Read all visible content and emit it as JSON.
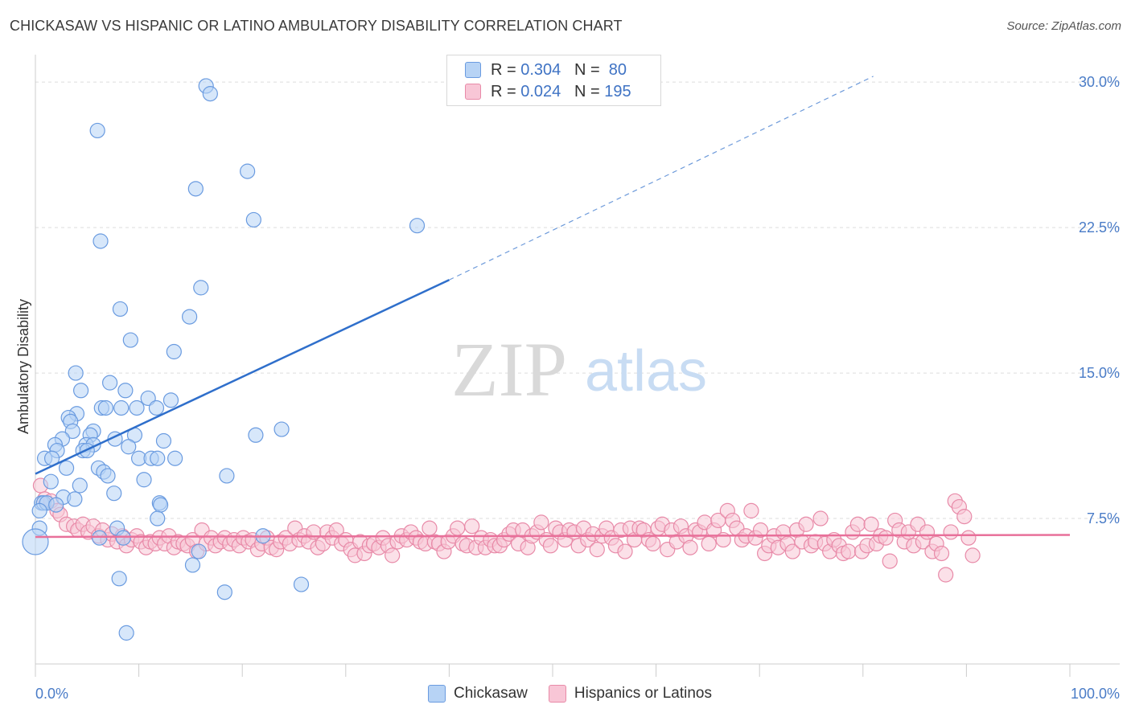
{
  "title": "CHICKASAW VS HISPANIC OR LATINO AMBULATORY DISABILITY CORRELATION CHART",
  "source": "Source: ZipAtlas.com",
  "watermark": {
    "zip": "ZIP",
    "atlas": "atlas"
  },
  "legend": {
    "rows": [
      {
        "r_label": "R =",
        "r_value": "0.304",
        "n_label": "N =",
        "n_value": "80"
      },
      {
        "r_label": "R =",
        "r_value": "0.024",
        "n_label": "N =",
        "n_value": "195"
      }
    ]
  },
  "bottom_legend": {
    "series1": "Chickasaw",
    "series2": "Hispanics or Latinos"
  },
  "colors": {
    "blue_fill": "#b7d3f5",
    "blue_stroke": "#6a9be0",
    "blue_line": "#2f6fcb",
    "pink_fill": "#f8c6d6",
    "pink_stroke": "#e88aa8",
    "pink_line": "#e8709a",
    "axis_text": "#4a7cc7",
    "grid": "#dddddd"
  },
  "chart_data": {
    "type": "scatter",
    "title": "CHICKASAW VS HISPANIC OR LATINO AMBULATORY DISABILITY CORRELATION CHART",
    "xlabel": "",
    "ylabel": "Ambulatory Disability",
    "xlim": [
      0,
      100
    ],
    "ylim": [
      0,
      31
    ],
    "x_tick_labels": [
      "0.0%",
      "100.0%"
    ],
    "y_ticks": [
      7.5,
      15.0,
      22.5,
      30.0
    ],
    "y_tick_labels": [
      "7.5%",
      "15.0%",
      "22.5%",
      "30.0%"
    ],
    "grid": true,
    "series": [
      {
        "name": "Chickasaw",
        "R": 0.304,
        "N": 80,
        "trend": {
          "x0": 0,
          "y0": 9.8,
          "x1": 40,
          "y1": 19.8,
          "dash_to_x": 81,
          "dash_to_y": 30.3
        },
        "points": [
          [
            16.5,
            29.8
          ],
          [
            16.9,
            29.4
          ],
          [
            6.0,
            27.5
          ],
          [
            20.5,
            25.4
          ],
          [
            15.5,
            24.5
          ],
          [
            21.1,
            22.9
          ],
          [
            36.9,
            22.6
          ],
          [
            6.3,
            21.8
          ],
          [
            16.0,
            19.4
          ],
          [
            8.2,
            18.3
          ],
          [
            14.9,
            17.9
          ],
          [
            9.2,
            16.7
          ],
          [
            13.4,
            16.1
          ],
          [
            3.9,
            15.0
          ],
          [
            7.2,
            14.5
          ],
          [
            4.4,
            14.1
          ],
          [
            8.7,
            14.1
          ],
          [
            10.9,
            13.7
          ],
          [
            13.1,
            13.6
          ],
          [
            6.4,
            13.2
          ],
          [
            6.8,
            13.2
          ],
          [
            8.3,
            13.2
          ],
          [
            9.8,
            13.2
          ],
          [
            11.7,
            13.2
          ],
          [
            4.0,
            12.9
          ],
          [
            3.2,
            12.7
          ],
          [
            3.4,
            12.5
          ],
          [
            3.6,
            12.0
          ],
          [
            5.6,
            12.0
          ],
          [
            5.3,
            11.8
          ],
          [
            9.6,
            11.8
          ],
          [
            21.3,
            11.8
          ],
          [
            23.8,
            12.1
          ],
          [
            2.6,
            11.6
          ],
          [
            1.9,
            11.3
          ],
          [
            4.9,
            11.3
          ],
          [
            5.6,
            11.3
          ],
          [
            7.7,
            11.6
          ],
          [
            12.4,
            11.5
          ],
          [
            2.1,
            11.0
          ],
          [
            4.6,
            11.0
          ],
          [
            5.0,
            11.0
          ],
          [
            9.0,
            11.2
          ],
          [
            0.9,
            10.6
          ],
          [
            1.6,
            10.6
          ],
          [
            10.0,
            10.6
          ],
          [
            11.2,
            10.6
          ],
          [
            11.8,
            10.6
          ],
          [
            13.5,
            10.6
          ],
          [
            3.0,
            10.1
          ],
          [
            6.1,
            10.1
          ],
          [
            6.6,
            9.9
          ],
          [
            7.0,
            9.7
          ],
          [
            10.5,
            9.5
          ],
          [
            18.5,
            9.7
          ],
          [
            1.5,
            9.4
          ],
          [
            4.3,
            9.2
          ],
          [
            7.6,
            8.8
          ],
          [
            2.7,
            8.6
          ],
          [
            3.8,
            8.5
          ],
          [
            0.6,
            8.3
          ],
          [
            0.8,
            8.3
          ],
          [
            1.1,
            8.3
          ],
          [
            2.0,
            8.2
          ],
          [
            12.0,
            8.3
          ],
          [
            12.1,
            8.2
          ],
          [
            0.4,
            7.9
          ],
          [
            11.8,
            7.5
          ],
          [
            0.4,
            7.0
          ],
          [
            7.9,
            7.0
          ],
          [
            6.2,
            6.5
          ],
          [
            8.5,
            6.5
          ],
          [
            22.0,
            6.6
          ],
          [
            0.0,
            6.3
          ],
          [
            15.8,
            5.8
          ],
          [
            15.2,
            5.1
          ],
          [
            8.1,
            4.4
          ],
          [
            18.3,
            3.7
          ],
          [
            25.7,
            4.1
          ],
          [
            8.8,
            1.6
          ]
        ]
      },
      {
        "name": "Hispanics or Latinos",
        "R": 0.024,
        "N": 195,
        "trend": {
          "x0": 0,
          "y0": 6.55,
          "x1": 100,
          "y1": 6.65
        },
        "points": [
          [
            0.5,
            9.2
          ],
          [
            0.9,
            8.5
          ],
          [
            1.5,
            8.4
          ],
          [
            2.1,
            7.9
          ],
          [
            2.4,
            7.7
          ],
          [
            3.0,
            7.2
          ],
          [
            3.7,
            7.1
          ],
          [
            4.1,
            6.9
          ],
          [
            4.6,
            7.2
          ],
          [
            5.1,
            6.8
          ],
          [
            5.6,
            7.1
          ],
          [
            6.1,
            6.6
          ],
          [
            6.5,
            6.9
          ],
          [
            7.0,
            6.4
          ],
          [
            7.4,
            6.7
          ],
          [
            7.9,
            6.3
          ],
          [
            8.4,
            6.6
          ],
          [
            8.8,
            6.1
          ],
          [
            9.3,
            6.4
          ],
          [
            9.8,
            6.6
          ],
          [
            10.2,
            6.3
          ],
          [
            10.7,
            6.0
          ],
          [
            11.1,
            6.3
          ],
          [
            11.6,
            6.2
          ],
          [
            12.0,
            6.5
          ],
          [
            12.5,
            6.2
          ],
          [
            12.9,
            6.6
          ],
          [
            13.4,
            6.0
          ],
          [
            13.8,
            6.3
          ],
          [
            14.3,
            6.2
          ],
          [
            14.7,
            6.1
          ],
          [
            15.2,
            6.4
          ],
          [
            15.6,
            5.8
          ],
          [
            16.1,
            6.9
          ],
          [
            16.5,
            6.2
          ],
          [
            17.0,
            6.5
          ],
          [
            17.4,
            6.1
          ],
          [
            17.9,
            6.3
          ],
          [
            18.3,
            6.5
          ],
          [
            18.8,
            6.2
          ],
          [
            19.2,
            6.4
          ],
          [
            19.7,
            6.1
          ],
          [
            20.1,
            6.5
          ],
          [
            20.6,
            6.3
          ],
          [
            21.0,
            6.4
          ],
          [
            21.5,
            5.9
          ],
          [
            21.9,
            6.2
          ],
          [
            22.4,
            6.5
          ],
          [
            22.8,
            6.0
          ],
          [
            23.3,
            5.9
          ],
          [
            23.7,
            6.3
          ],
          [
            24.2,
            6.5
          ],
          [
            24.6,
            6.2
          ],
          [
            25.1,
            7.0
          ],
          [
            25.5,
            6.4
          ],
          [
            26.0,
            6.6
          ],
          [
            26.4,
            6.3
          ],
          [
            26.9,
            6.8
          ],
          [
            27.3,
            6.0
          ],
          [
            27.8,
            6.2
          ],
          [
            28.2,
            6.8
          ],
          [
            28.7,
            6.5
          ],
          [
            29.1,
            6.9
          ],
          [
            29.6,
            6.2
          ],
          [
            30.0,
            6.4
          ],
          [
            30.5,
            5.9
          ],
          [
            30.9,
            5.6
          ],
          [
            31.4,
            6.3
          ],
          [
            31.8,
            5.7
          ],
          [
            32.3,
            6.1
          ],
          [
            32.7,
            6.2
          ],
          [
            33.2,
            6.0
          ],
          [
            33.6,
            6.5
          ],
          [
            34.1,
            6.1
          ],
          [
            34.5,
            5.6
          ],
          [
            35.0,
            6.3
          ],
          [
            35.4,
            6.6
          ],
          [
            35.9,
            6.4
          ],
          [
            36.3,
            6.8
          ],
          [
            36.8,
            6.5
          ],
          [
            37.2,
            6.3
          ],
          [
            37.7,
            6.2
          ],
          [
            38.1,
            7.0
          ],
          [
            38.6,
            6.3
          ],
          [
            39.0,
            6.2
          ],
          [
            39.5,
            5.8
          ],
          [
            39.9,
            6.3
          ],
          [
            40.4,
            6.6
          ],
          [
            40.8,
            7.0
          ],
          [
            41.3,
            6.2
          ],
          [
            41.7,
            6.1
          ],
          [
            42.2,
            7.1
          ],
          [
            42.6,
            6.0
          ],
          [
            43.1,
            6.5
          ],
          [
            43.5,
            6.0
          ],
          [
            44.0,
            6.4
          ],
          [
            44.4,
            6.1
          ],
          [
            44.9,
            6.1
          ],
          [
            45.3,
            6.4
          ],
          [
            45.8,
            6.7
          ],
          [
            46.2,
            6.9
          ],
          [
            46.7,
            6.2
          ],
          [
            47.1,
            6.9
          ],
          [
            47.6,
            6.0
          ],
          [
            48.0,
            6.6
          ],
          [
            48.5,
            6.8
          ],
          [
            48.9,
            7.3
          ],
          [
            49.4,
            6.4
          ],
          [
            49.8,
            6.1
          ],
          [
            50.3,
            7.0
          ],
          [
            50.7,
            6.8
          ],
          [
            51.2,
            6.4
          ],
          [
            51.6,
            6.9
          ],
          [
            52.1,
            6.8
          ],
          [
            52.5,
            6.1
          ],
          [
            53.0,
            7.0
          ],
          [
            53.4,
            6.4
          ],
          [
            53.9,
            6.7
          ],
          [
            54.3,
            5.9
          ],
          [
            54.8,
            6.6
          ],
          [
            55.2,
            7.0
          ],
          [
            55.7,
            6.5
          ],
          [
            56.1,
            6.1
          ],
          [
            56.6,
            6.9
          ],
          [
            57.0,
            5.8
          ],
          [
            57.5,
            7.0
          ],
          [
            57.9,
            6.4
          ],
          [
            58.4,
            7.0
          ],
          [
            58.8,
            6.9
          ],
          [
            59.3,
            6.4
          ],
          [
            59.7,
            6.2
          ],
          [
            60.2,
            7.0
          ],
          [
            60.6,
            7.2
          ],
          [
            61.1,
            5.9
          ],
          [
            61.5,
            6.9
          ],
          [
            62.0,
            6.3
          ],
          [
            62.4,
            7.1
          ],
          [
            62.9,
            6.6
          ],
          [
            63.3,
            6.0
          ],
          [
            63.8,
            6.9
          ],
          [
            64.2,
            6.8
          ],
          [
            64.7,
            7.3
          ],
          [
            65.1,
            6.2
          ],
          [
            65.6,
            6.9
          ],
          [
            66.0,
            7.4
          ],
          [
            66.5,
            6.4
          ],
          [
            66.9,
            7.9
          ],
          [
            67.4,
            7.4
          ],
          [
            67.8,
            7.0
          ],
          [
            68.3,
            6.4
          ],
          [
            68.7,
            6.6
          ],
          [
            69.2,
            7.9
          ],
          [
            69.6,
            6.5
          ],
          [
            70.1,
            6.9
          ],
          [
            70.5,
            5.7
          ],
          [
            70.9,
            6.1
          ],
          [
            71.4,
            6.6
          ],
          [
            71.8,
            6.0
          ],
          [
            72.3,
            6.8
          ],
          [
            72.7,
            6.2
          ],
          [
            73.2,
            5.8
          ],
          [
            73.6,
            6.9
          ],
          [
            74.1,
            6.3
          ],
          [
            74.5,
            7.2
          ],
          [
            75.0,
            6.1
          ],
          [
            75.4,
            6.3
          ],
          [
            75.9,
            7.5
          ],
          [
            76.3,
            6.2
          ],
          [
            76.8,
            5.8
          ],
          [
            77.2,
            6.4
          ],
          [
            77.7,
            6.1
          ],
          [
            78.1,
            5.7
          ],
          [
            78.6,
            5.8
          ],
          [
            79.0,
            6.8
          ],
          [
            79.5,
            7.2
          ],
          [
            79.9,
            5.8
          ],
          [
            80.4,
            6.1
          ],
          [
            80.8,
            7.2
          ],
          [
            81.3,
            6.2
          ],
          [
            81.7,
            6.6
          ],
          [
            82.2,
            6.5
          ],
          [
            82.6,
            5.3
          ],
          [
            83.1,
            7.4
          ],
          [
            83.5,
            6.9
          ],
          [
            84.0,
            6.3
          ],
          [
            84.4,
            6.8
          ],
          [
            84.9,
            6.1
          ],
          [
            85.3,
            7.2
          ],
          [
            85.8,
            6.3
          ],
          [
            86.2,
            6.8
          ],
          [
            86.7,
            5.8
          ],
          [
            87.1,
            6.2
          ],
          [
            87.6,
            5.7
          ],
          [
            88.0,
            4.6
          ],
          [
            88.5,
            6.8
          ],
          [
            88.9,
            8.4
          ],
          [
            89.3,
            8.1
          ],
          [
            89.8,
            7.6
          ],
          [
            90.2,
            6.5
          ],
          [
            90.6,
            5.6
          ]
        ]
      }
    ]
  }
}
